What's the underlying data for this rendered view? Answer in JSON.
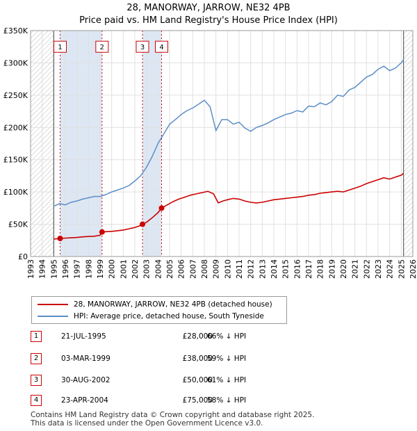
{
  "title": {
    "line1": "28, MANORWAY, JARROW, NE32 4PB",
    "line2": "Price paid vs. HM Land Registry's House Price Index (HPI)"
  },
  "colors": {
    "price_line": "#cc0000",
    "hpi_line": "#5b8ec7",
    "shade": "#dde7f4",
    "hatch": "#bbbbbb",
    "marker_border": "#cc0000"
  },
  "legend": {
    "price_label": "28, MANORWAY, JARROW, NE32 4PB (detached house)",
    "hpi_label": "HPI: Average price, detached house, South Tyneside"
  },
  "transactions": [
    {
      "num": "1",
      "date": "21-JUL-1995",
      "price": "£28,000",
      "hpi": "66% ↓ HPI"
    },
    {
      "num": "2",
      "date": "03-MAR-1999",
      "price": "£38,000",
      "hpi": "59% ↓ HPI"
    },
    {
      "num": "3",
      "date": "30-AUG-2002",
      "price": "£50,000",
      "hpi": "61% ↓ HPI"
    },
    {
      "num": "4",
      "date": "23-APR-2004",
      "price": "£75,000",
      "hpi": "58% ↓ HPI"
    }
  ],
  "footer": {
    "line1": "Contains HM Land Registry data © Crown copyright and database right 2025.",
    "line2": "This data is licensed under the Open Government Licence v3.0."
  },
  "chart_data": {
    "type": "line",
    "title": "Price paid vs. HM Land Registry's House Price Index (HPI)",
    "xlim": [
      1993,
      2026
    ],
    "ylim": [
      0,
      350000
    ],
    "x_ticks": [
      1993,
      1994,
      1995,
      1996,
      1997,
      1998,
      1999,
      2000,
      2001,
      2002,
      2003,
      2004,
      2005,
      2006,
      2007,
      2008,
      2009,
      2010,
      2011,
      2012,
      2013,
      2014,
      2015,
      2016,
      2017,
      2018,
      2019,
      2020,
      2021,
      2022,
      2023,
      2024,
      2025,
      2026
    ],
    "y_ticks": [
      {
        "value": 0,
        "label": "£0"
      },
      {
        "value": 50000,
        "label": "£50K"
      },
      {
        "value": 100000,
        "label": "£100K"
      },
      {
        "value": 150000,
        "label": "£150K"
      },
      {
        "value": 200000,
        "label": "£200K"
      },
      {
        "value": 250000,
        "label": "£250K"
      },
      {
        "value": 300000,
        "label": "£300K"
      },
      {
        "value": 350000,
        "label": "£350K"
      }
    ],
    "hatched_ranges": [
      [
        1993,
        1995.0
      ],
      [
        2025.2,
        2026
      ]
    ],
    "shaded_ranges": [
      [
        1995.55,
        1999.17
      ],
      [
        2002.66,
        2004.31
      ]
    ],
    "series": [
      {
        "name": "HPI: Average price, detached house, South Tyneside",
        "x": [
          1995.0,
          1995.5,
          1996.0,
          1996.5,
          1997.0,
          1997.5,
          1998.0,
          1998.5,
          1999.0,
          1999.5,
          2000.0,
          2000.5,
          2001.0,
          2001.5,
          2002.0,
          2002.5,
          2003.0,
          2003.5,
          2004.0,
          2004.5,
          2005.0,
          2005.5,
          2006.0,
          2006.5,
          2007.0,
          2007.5,
          2008.0,
          2008.5,
          2009.0,
          2009.5,
          2010.0,
          2010.5,
          2011.0,
          2011.5,
          2012.0,
          2012.5,
          2013.0,
          2013.5,
          2014.0,
          2014.5,
          2015.0,
          2015.5,
          2016.0,
          2016.5,
          2017.0,
          2017.5,
          2018.0,
          2018.5,
          2019.0,
          2019.5,
          2020.0,
          2020.5,
          2021.0,
          2021.5,
          2022.0,
          2022.5,
          2023.0,
          2023.5,
          2024.0,
          2024.5,
          2025.0,
          2025.2
        ],
        "values": [
          78000,
          82000,
          80000,
          84000,
          86000,
          89000,
          91000,
          93000,
          93000,
          96000,
          100000,
          103000,
          106000,
          110000,
          117000,
          125000,
          138000,
          155000,
          175000,
          190000,
          205000,
          212000,
          220000,
          226000,
          230000,
          236000,
          242000,
          232000,
          195000,
          212000,
          212000,
          205000,
          208000,
          199000,
          194000,
          200000,
          203000,
          207000,
          212000,
          216000,
          220000,
          222000,
          226000,
          224000,
          233000,
          232000,
          238000,
          235000,
          240000,
          250000,
          248000,
          258000,
          262000,
          270000,
          278000,
          282000,
          290000,
          295000,
          288000,
          292000,
          300000,
          305000
        ]
      },
      {
        "name": "28, MANORWAY, JARROW, NE32 4PB (detached house)",
        "x": [
          1995.0,
          1995.55,
          1996.0,
          1996.5,
          1997.0,
          1997.5,
          1998.0,
          1998.5,
          1999.0,
          1999.17,
          1999.5,
          2000.0,
          2000.5,
          2001.0,
          2001.5,
          2002.0,
          2002.5,
          2002.66,
          2003.0,
          2003.5,
          2004.0,
          2004.31,
          2004.8,
          2005.3,
          2005.8,
          2006.3,
          2006.8,
          2007.3,
          2007.8,
          2008.3,
          2008.8,
          2009.2,
          2009.6,
          2010.0,
          2010.5,
          2011.0,
          2011.5,
          2012.0,
          2012.5,
          2013.0,
          2013.5,
          2014.0,
          2014.5,
          2015.0,
          2015.5,
          2016.0,
          2016.5,
          2017.0,
          2017.5,
          2018.0,
          2018.5,
          2019.0,
          2019.5,
          2020.0,
          2020.5,
          2021.0,
          2021.5,
          2022.0,
          2022.5,
          2023.0,
          2023.5,
          2024.0,
          2024.5,
          2025.0,
          2025.2
        ],
        "values": [
          27000,
          28000,
          28500,
          29000,
          29500,
          30500,
          31000,
          31500,
          33000,
          38000,
          38500,
          39000,
          40000,
          41000,
          43000,
          45000,
          48000,
          50000,
          53000,
          60000,
          68000,
          75000,
          80000,
          85000,
          89000,
          92000,
          95000,
          97000,
          99000,
          101000,
          97000,
          83000,
          86000,
          88000,
          90000,
          89000,
          86000,
          84000,
          83000,
          84000,
          86000,
          88000,
          89000,
          90000,
          91000,
          92000,
          93000,
          95000,
          96000,
          98000,
          99000,
          100000,
          101000,
          100000,
          103000,
          106000,
          109000,
          113000,
          116000,
          119000,
          122000,
          120000,
          123000,
          126000,
          129000
        ]
      }
    ],
    "markers": [
      {
        "label": "1",
        "x": 1995.55,
        "value": 28000,
        "box_y": 325000
      },
      {
        "label": "2",
        "x": 1999.17,
        "value": 38000,
        "box_y": 325000
      },
      {
        "label": "3",
        "x": 2002.66,
        "value": 50000,
        "box_y": 325000
      },
      {
        "label": "4",
        "x": 2004.31,
        "value": 75000,
        "box_y": 325000
      }
    ]
  }
}
